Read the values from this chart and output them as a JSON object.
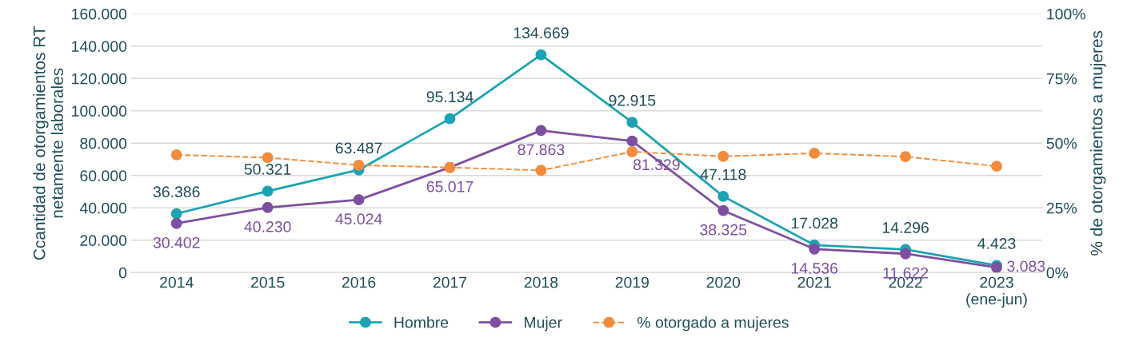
{
  "chart_data": {
    "type": "line",
    "categories": [
      "2014",
      "2015",
      "2016",
      "2017",
      "2018",
      "2019",
      "2020",
      "2021",
      "2022",
      "2023\n(ene-jun)"
    ],
    "ylabel": "Ccantidad de otorgamientos RT\nnetamente laborales",
    "y2label": "% de otorgamientos a mujeres",
    "ylim": [
      0,
      160000
    ],
    "yticks": [
      {
        "value": 0,
        "label": "0"
      },
      {
        "value": 20000,
        "label": "20.000"
      },
      {
        "value": 40000,
        "label": "40.000"
      },
      {
        "value": 60000,
        "label": "60.000"
      },
      {
        "value": 80000,
        "label": "80.000"
      },
      {
        "value": 100000,
        "label": "100.000"
      },
      {
        "value": 120000,
        "label": "120.000"
      },
      {
        "value": 140000,
        "label": "140.000"
      },
      {
        "value": 160000,
        "label": "160.000"
      }
    ],
    "y2lim": [
      0,
      100
    ],
    "y2ticks": [
      {
        "value": 0,
        "label": "0%"
      },
      {
        "value": 25,
        "label": "25%"
      },
      {
        "value": 50,
        "label": "50%"
      },
      {
        "value": 75,
        "label": "75%"
      },
      {
        "value": 100,
        "label": "100%"
      }
    ],
    "grid": "y",
    "legend": "bottom",
    "marker": "circle",
    "series": [
      {
        "name": "Hombre",
        "color": "#1ba3b3",
        "line_style": "solid",
        "values": [
          36386,
          50321,
          63487,
          95134,
          134669,
          92915,
          47118,
          17028,
          14296,
          4423
        ],
        "value_labels": [
          "36.386",
          "50.321",
          "63.487",
          "95.134",
          "134.669",
          "92.915",
          "47.118",
          "17.028",
          "14.296",
          "4.423"
        ]
      },
      {
        "name": "Mujer",
        "color": "#7e4fa0",
        "line_style": "solid",
        "values": [
          30402,
          40230,
          45024,
          65017,
          87863,
          81329,
          38325,
          14536,
          11622,
          3083
        ],
        "value_labels": [
          "30.402",
          "40.230",
          "45.024",
          "65.017",
          "87.863",
          "81.329",
          "38.325",
          "14.536",
          "11.622",
          "3.083"
        ]
      },
      {
        "name": "% otorgado a mujeres",
        "color": "#f28c3c",
        "line_style": "dashed",
        "axis": "y2",
        "values": [
          45.5,
          44.4,
          41.5,
          40.6,
          39.5,
          46.7,
          44.9,
          46.1,
          44.8,
          41.1
        ]
      }
    ]
  }
}
